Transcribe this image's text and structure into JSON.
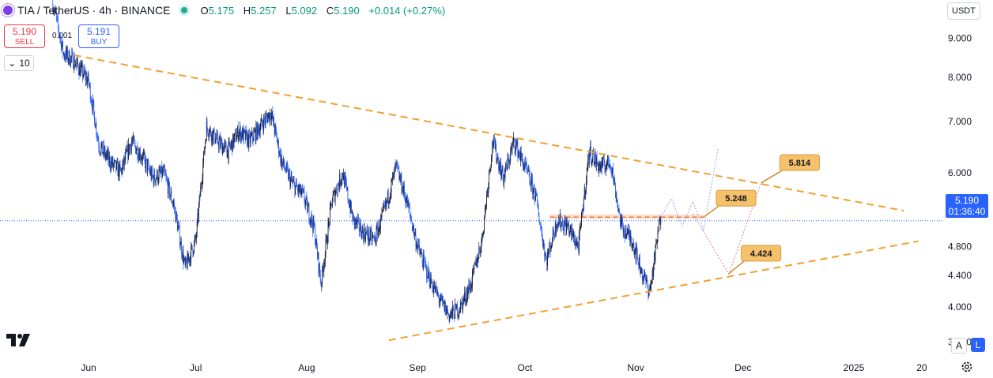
{
  "header": {
    "symbol": "TIA / TetherUS · 4h · BINANCE",
    "ohlc": [
      {
        "k": "O",
        "v": "5.175"
      },
      {
        "k": "H",
        "v": "5.257"
      },
      {
        "k": "L",
        "v": "5.092"
      },
      {
        "k": "C",
        "v": "5.190"
      }
    ],
    "change": "+0.014 (+0.27%)"
  },
  "trade": {
    "sell_price": "5.190",
    "sell_label": "SELL",
    "buy_price": "5.191",
    "buy_label": "BUY",
    "spread": "0.001",
    "quantity": "10"
  },
  "currency": "USDT",
  "last_price": {
    "value": "5.190",
    "countdown": "01:36:40"
  },
  "colors": {
    "up": "#089981",
    "down": "#2962ff",
    "trend": "#f0a030",
    "accent": "#2962ff",
    "sell": "#f23645"
  },
  "controls": {
    "auto": "A",
    "log": "L"
  },
  "chart_data": {
    "type": "line",
    "scale": "log",
    "ylim": [
      3.42,
      10.1
    ],
    "y_ticks": [
      "9.000",
      "8.000",
      "7.000",
      "6.000",
      "5.400",
      "4.800",
      "4.400",
      "4.000",
      "3.600"
    ],
    "x_ticks": [
      "Jun",
      "Jul",
      "Aug",
      "Sep",
      "Oct",
      "Nov",
      "Dec",
      "2025",
      "20"
    ],
    "series": [
      {
        "x": [
          "2024-05-22",
          "2024-05-25",
          "2024-05-28",
          "2024-06-01",
          "2024-06-04",
          "2024-06-07",
          "2024-06-10",
          "2024-06-13",
          "2024-06-16",
          "2024-06-19",
          "2024-06-22",
          "2024-06-25",
          "2024-06-28",
          "2024-07-01",
          "2024-07-04",
          "2024-07-07",
          "2024-07-10",
          "2024-07-13",
          "2024-07-16",
          "2024-07-19",
          "2024-07-22",
          "2024-07-25",
          "2024-07-28",
          "2024-07-31",
          "2024-08-03",
          "2024-08-05",
          "2024-08-08",
          "2024-08-11",
          "2024-08-14",
          "2024-08-17",
          "2024-08-20",
          "2024-08-23",
          "2024-08-26",
          "2024-08-29",
          "2024-09-01",
          "2024-09-04",
          "2024-09-07",
          "2024-09-10",
          "2024-09-13",
          "2024-09-16",
          "2024-09-19",
          "2024-09-22",
          "2024-09-25",
          "2024-09-28",
          "2024-10-01",
          "2024-10-04",
          "2024-10-07",
          "2024-10-10",
          "2024-10-13",
          "2024-10-16",
          "2024-10-19",
          "2024-10-22",
          "2024-10-25",
          "2024-10-28",
          "2024-10-31",
          "2024-11-03",
          "2024-11-05",
          "2024-11-08"
        ],
        "values": [
          10.0,
          8.6,
          8.4,
          7.9,
          6.5,
          6.2,
          6.0,
          6.6,
          6.3,
          5.9,
          6.0,
          5.4,
          4.5,
          4.9,
          6.9,
          6.6,
          6.4,
          6.8,
          6.6,
          6.9,
          7.2,
          6.2,
          5.8,
          5.6,
          5.1,
          4.3,
          5.5,
          6.0,
          5.2,
          5.0,
          4.9,
          5.4,
          6.1,
          5.5,
          4.8,
          4.4,
          4.1,
          3.9,
          4.0,
          4.3,
          4.9,
          6.6,
          5.9,
          6.6,
          6.1,
          5.6,
          4.6,
          5.2,
          5.1,
          4.8,
          6.4,
          6.1,
          6.2,
          5.1,
          4.9,
          4.4,
          4.2,
          5.3
        ]
      }
    ],
    "trendlines": [
      {
        "from": [
          "2024-05-28",
          8.55
        ],
        "to": [
          "2025-01-15",
          5.35
        ]
      },
      {
        "from": [
          "2024-08-24",
          3.62
        ],
        "to": [
          "2025-01-19",
          4.88
        ]
      }
    ],
    "resistance_zone": [
      5.22,
      5.29
    ],
    "annotations": [
      {
        "label": "5.248",
        "value": 5.248
      },
      {
        "label": "5.814",
        "value": 5.814
      },
      {
        "label": "4.424",
        "value": 4.424
      }
    ],
    "legend": "none",
    "grid": false
  }
}
